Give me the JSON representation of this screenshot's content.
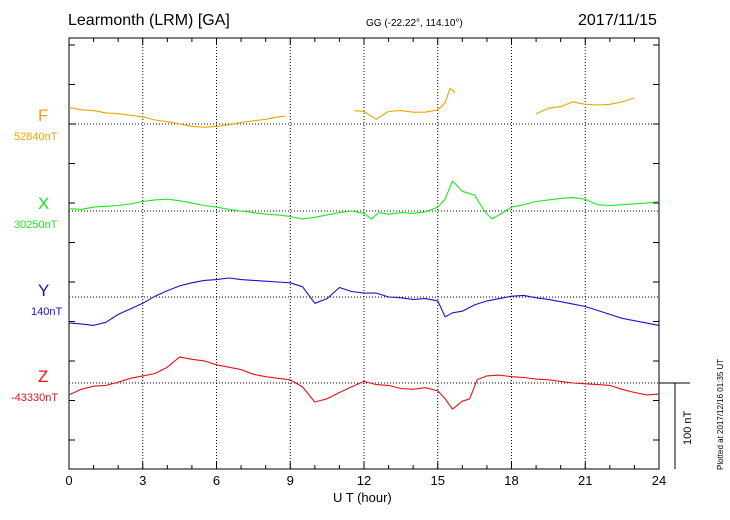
{
  "header": {
    "station": "Learmonth (LRM)  [GA]",
    "coords": "GG (-22.22°, 114.10°)",
    "date": "2017/11/15"
  },
  "plotted_note": "Plotted at 2017/12/16 01:35 UT",
  "scale_label": "100 nT",
  "chart_data": {
    "type": "line",
    "xlabel": "U T (hour)",
    "xlim": [
      0,
      24
    ],
    "xticks": [
      "0",
      "3",
      "6",
      "9",
      "12",
      "15",
      "18",
      "21",
      "24"
    ],
    "grid": true,
    "y_scale_bar_nT": 100,
    "series": [
      {
        "name": "F",
        "baseline": "52840nT",
        "color": "#f2a200",
        "points": [
          [
            0,
            21
          ],
          [
            0.5,
            18
          ],
          [
            1,
            17
          ],
          [
            1.5,
            14
          ],
          [
            2,
            13
          ],
          [
            2.5,
            11
          ],
          [
            3,
            9
          ],
          [
            3.5,
            5
          ],
          [
            4,
            3
          ],
          [
            4.5,
            0
          ],
          [
            5,
            -3
          ],
          [
            5.5,
            -4
          ],
          [
            6,
            -3
          ],
          [
            6.5,
            -1
          ],
          [
            7,
            2
          ],
          [
            7.5,
            4
          ],
          [
            8,
            6
          ],
          [
            8.5,
            9
          ],
          [
            8.8,
            10
          ],
          null,
          [
            11.6,
            17
          ],
          [
            12,
            16
          ],
          [
            12.5,
            6
          ],
          [
            13,
            16
          ],
          [
            13.5,
            17
          ],
          [
            14,
            15
          ],
          [
            14.5,
            15
          ],
          [
            15,
            18
          ],
          [
            15.3,
            27
          ],
          [
            15.5,
            45
          ],
          [
            15.7,
            40
          ],
          null,
          [
            19,
            13
          ],
          [
            19.5,
            20
          ],
          [
            20,
            22
          ],
          [
            20.5,
            28
          ],
          [
            21,
            25
          ],
          [
            21.5,
            24
          ],
          [
            22,
            25
          ],
          [
            22.5,
            28
          ],
          [
            23,
            33
          ]
        ]
      },
      {
        "name": "X",
        "baseline": "30250nT",
        "color": "#1ee61e",
        "points": [
          [
            0,
            3
          ],
          [
            0.5,
            2
          ],
          [
            1,
            5
          ],
          [
            1.5,
            6
          ],
          [
            2,
            7
          ],
          [
            2.5,
            9
          ],
          [
            3,
            12
          ],
          [
            3.5,
            14
          ],
          [
            4,
            15
          ],
          [
            4.5,
            13
          ],
          [
            5,
            10
          ],
          [
            5.5,
            7
          ],
          [
            6,
            5
          ],
          [
            6.5,
            2
          ],
          [
            7,
            0
          ],
          [
            7.5,
            -2
          ],
          [
            8,
            -4
          ],
          [
            8.5,
            -5
          ],
          [
            9,
            -7
          ],
          [
            9.5,
            -10
          ],
          [
            10,
            -8
          ],
          [
            10.5,
            -5
          ],
          [
            11,
            -2
          ],
          [
            11.5,
            0
          ],
          [
            12,
            -3
          ],
          [
            12.3,
            -10
          ],
          [
            12.6,
            -2
          ],
          [
            13,
            -4
          ],
          [
            13.5,
            -2
          ],
          [
            14,
            -3
          ],
          [
            14.5,
            -1
          ],
          [
            15,
            5
          ],
          [
            15.3,
            15
          ],
          [
            15.6,
            38
          ],
          [
            16,
            25
          ],
          [
            16.5,
            20
          ],
          [
            16.9,
            0
          ],
          [
            17.2,
            -10
          ],
          [
            17.6,
            -3
          ],
          [
            18,
            5
          ],
          [
            18.5,
            8
          ],
          [
            19,
            12
          ],
          [
            19.5,
            14
          ],
          [
            20,
            16
          ],
          [
            20.5,
            17
          ],
          [
            21,
            15
          ],
          [
            21.5,
            8
          ],
          [
            22,
            7
          ],
          [
            22.5,
            8
          ],
          [
            23,
            9
          ],
          [
            23.5,
            10
          ],
          [
            24,
            12
          ]
        ]
      },
      {
        "name": "Y",
        "baseline": "140nT",
        "color": "#1414cc",
        "points": [
          [
            0,
            -33
          ],
          [
            0.5,
            -34
          ],
          [
            1,
            -36
          ],
          [
            1.5,
            -32
          ],
          [
            2,
            -22
          ],
          [
            2.5,
            -15
          ],
          [
            3,
            -8
          ],
          [
            3.5,
            1
          ],
          [
            4,
            8
          ],
          [
            4.5,
            14
          ],
          [
            5,
            18
          ],
          [
            5.5,
            21
          ],
          [
            6,
            22
          ],
          [
            6.5,
            24
          ],
          [
            7,
            22
          ],
          [
            7.5,
            21
          ],
          [
            8,
            20
          ],
          [
            8.5,
            19
          ],
          [
            9,
            18
          ],
          [
            9.5,
            13
          ],
          [
            10,
            -8
          ],
          [
            10.5,
            -2
          ],
          [
            11,
            12
          ],
          [
            11.5,
            7
          ],
          [
            12,
            5
          ],
          [
            12.5,
            5
          ],
          [
            13,
            0
          ],
          [
            13.5,
            -1
          ],
          [
            14,
            -3
          ],
          [
            14.5,
            -2
          ],
          [
            15,
            -5
          ],
          [
            15.3,
            -25
          ],
          [
            15.6,
            -20
          ],
          [
            16,
            -18
          ],
          [
            16.5,
            -10
          ],
          [
            17,
            -5
          ],
          [
            17.5,
            -2
          ],
          [
            18,
            1
          ],
          [
            18.5,
            2
          ],
          [
            19,
            -1
          ],
          [
            19.5,
            -3
          ],
          [
            20,
            -6
          ],
          [
            20.5,
            -9
          ],
          [
            21,
            -12
          ],
          [
            21.5,
            -17
          ],
          [
            22,
            -22
          ],
          [
            22.5,
            -27
          ],
          [
            23,
            -30
          ],
          [
            23.5,
            -33
          ],
          [
            24,
            -36
          ]
        ]
      },
      {
        "name": "Z",
        "baseline": "-43330nT",
        "color": "#e01414",
        "points": [
          [
            0,
            -15
          ],
          [
            0.5,
            -8
          ],
          [
            1,
            -4
          ],
          [
            1.5,
            -3
          ],
          [
            2,
            1
          ],
          [
            2.5,
            6
          ],
          [
            3,
            9
          ],
          [
            3.5,
            12
          ],
          [
            4,
            20
          ],
          [
            4.5,
            33
          ],
          [
            5,
            30
          ],
          [
            5.5,
            28
          ],
          [
            6,
            23
          ],
          [
            6.5,
            20
          ],
          [
            7,
            17
          ],
          [
            7.5,
            11
          ],
          [
            8,
            8
          ],
          [
            8.5,
            6
          ],
          [
            9,
            4
          ],
          [
            9.5,
            -5
          ],
          [
            10,
            -24
          ],
          [
            10.5,
            -20
          ],
          [
            11,
            -12
          ],
          [
            11.5,
            -5
          ],
          [
            12,
            2
          ],
          [
            12.5,
            -2
          ],
          [
            13,
            -3
          ],
          [
            13.5,
            -7
          ],
          [
            14,
            -8
          ],
          [
            14.5,
            -6
          ],
          [
            15,
            -10
          ],
          [
            15.3,
            -20
          ],
          [
            15.6,
            -33
          ],
          [
            16,
            -23
          ],
          [
            16.3,
            -20
          ],
          [
            16.6,
            4
          ],
          [
            17,
            9
          ],
          [
            17.5,
            10
          ],
          [
            18,
            8
          ],
          [
            18.5,
            7
          ],
          [
            19,
            5
          ],
          [
            19.5,
            4
          ],
          [
            20,
            2
          ],
          [
            20.5,
            0
          ],
          [
            21,
            -1
          ],
          [
            21.5,
            -2
          ],
          [
            22,
            -3
          ],
          [
            22.5,
            -8
          ],
          [
            23,
            -12
          ],
          [
            23.5,
            -15
          ],
          [
            24,
            -14
          ]
        ]
      }
    ]
  }
}
